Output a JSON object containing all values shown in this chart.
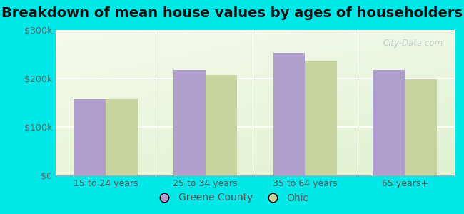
{
  "title": "Breakdown of mean house values by ages of householders",
  "categories": [
    "15 to 24 years",
    "25 to 34 years",
    "35 to 64 years",
    "65 years+"
  ],
  "greene_county": [
    158000,
    218000,
    253000,
    218000
  ],
  "ohio": [
    157000,
    207000,
    237000,
    198000
  ],
  "bar_color_greene": "#b09fcc",
  "bar_color_ohio": "#c8d4a0",
  "background_color": "#00e8e8",
  "plot_bg_color": "#e8f5e5",
  "ylim": [
    0,
    300000
  ],
  "yticks": [
    0,
    100000,
    200000,
    300000
  ],
  "ytick_labels": [
    "$0",
    "$100k",
    "$200k",
    "$300k"
  ],
  "legend_labels": [
    "Greene County",
    "Ohio"
  ],
  "title_fontsize": 14,
  "tick_fontsize": 9,
  "legend_fontsize": 10,
  "bar_width": 0.32,
  "watermark": "City-Data.com",
  "watermark_color": "#c0c8c8"
}
